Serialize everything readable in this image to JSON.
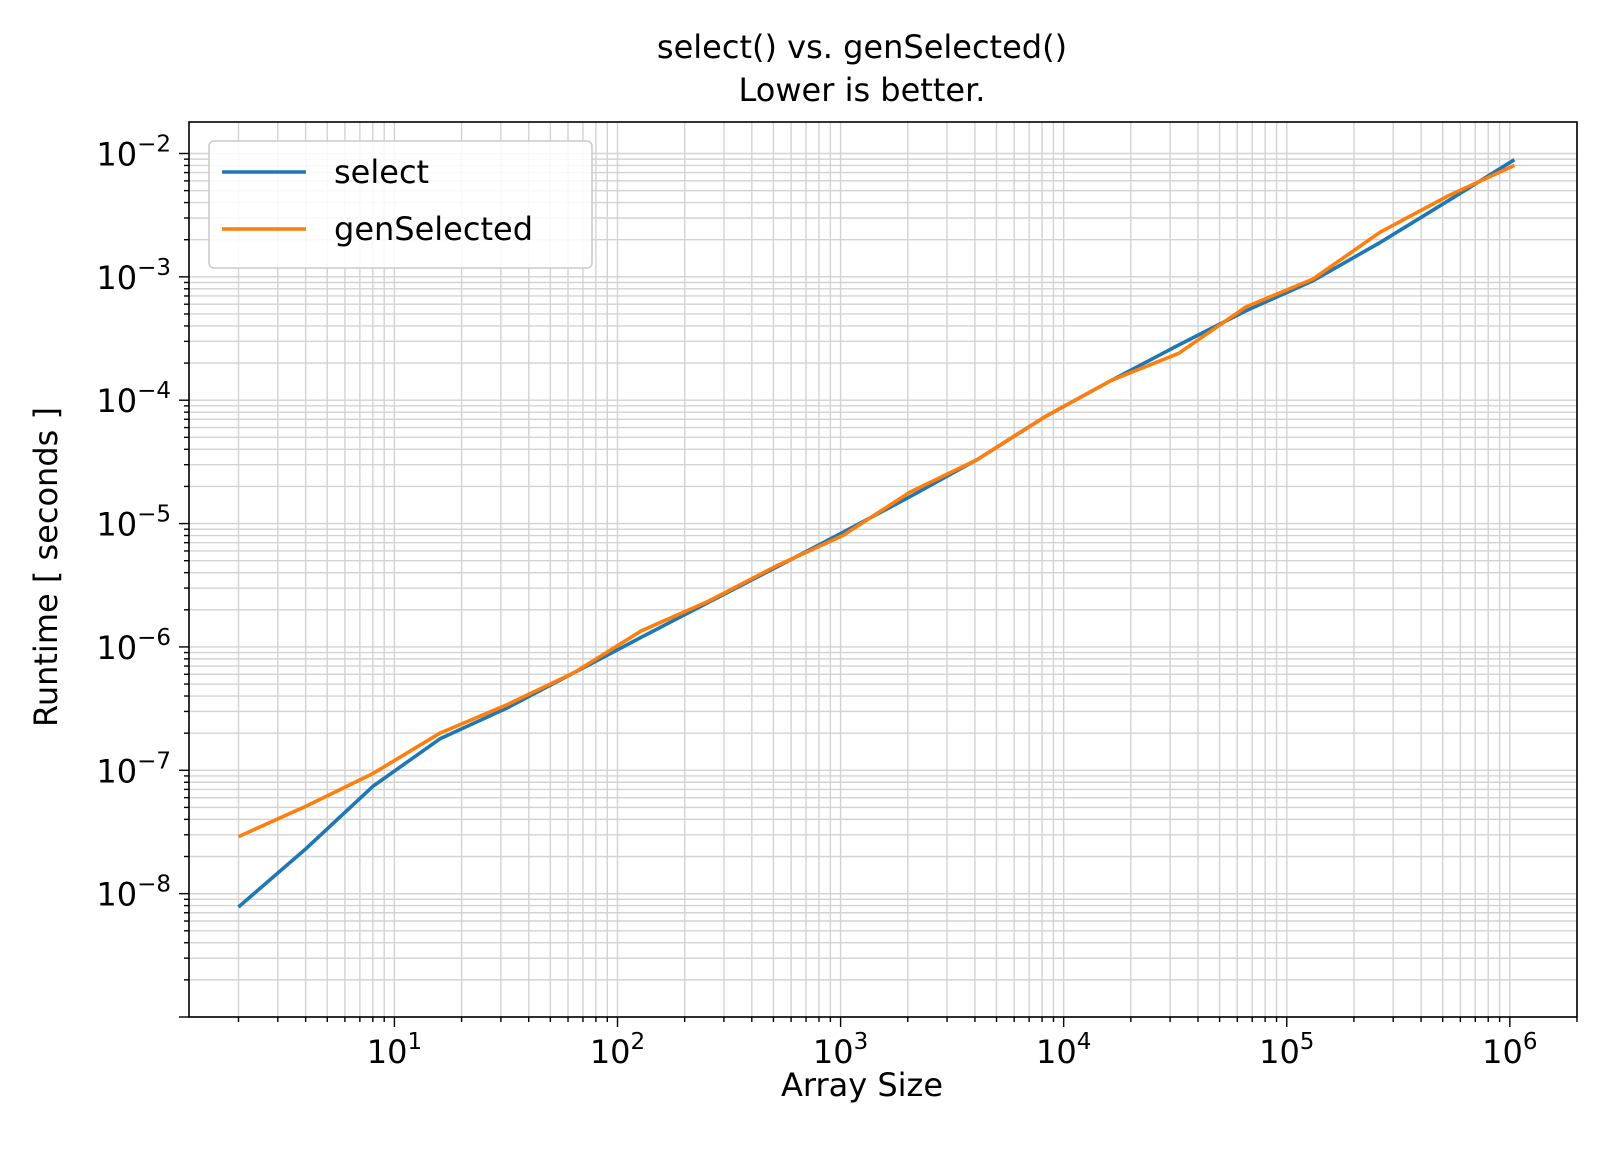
{
  "chart_data": {
    "type": "line",
    "title": "select() vs. genSelected()",
    "subtitle": "Lower is better.",
    "xlabel": "Array Size",
    "ylabel": "Runtime [ seconds ]",
    "xscale": "log",
    "yscale": "log",
    "xlim": [
      1.2,
      2000000
    ],
    "ylim": [
      1e-09,
      0.018
    ],
    "grid": "major and minor",
    "legend_position": "top-left",
    "x_ticks": [
      {
        "base": "10",
        "exp": "1",
        "value": 10
      },
      {
        "base": "10",
        "exp": "2",
        "value": 100
      },
      {
        "base": "10",
        "exp": "3",
        "value": 1000
      },
      {
        "base": "10",
        "exp": "4",
        "value": 10000
      },
      {
        "base": "10",
        "exp": "5",
        "value": 100000
      },
      {
        "base": "10",
        "exp": "6",
        "value": 1000000
      }
    ],
    "y_ticks": [
      {
        "base": "10",
        "exp": "−8",
        "value": 1e-08
      },
      {
        "base": "10",
        "exp": "−7",
        "value": 1e-07
      },
      {
        "base": "10",
        "exp": "−6",
        "value": 1e-06
      },
      {
        "base": "10",
        "exp": "−5",
        "value": 1e-05
      },
      {
        "base": "10",
        "exp": "−4",
        "value": 0.0001
      },
      {
        "base": "10",
        "exp": "−3",
        "value": 0.001
      },
      {
        "base": "10",
        "exp": "−2",
        "value": 0.01
      }
    ],
    "x": [
      2,
      4,
      8,
      16,
      32,
      64,
      128,
      256,
      512,
      1024,
      2048,
      4096,
      8192,
      16384,
      32768,
      65536,
      131072,
      262144,
      524288,
      1048576
    ],
    "series": [
      {
        "name": "select",
        "color": "#1f77b4",
        "values": [
          7.8e-09,
          2.3e-08,
          7.4e-08,
          1.8e-07,
          3.2e-07,
          6.2e-07,
          1.2e-06,
          2.3e-06,
          4.4e-06,
          8.5e-06,
          1.65e-05,
          3.3e-05,
          7.3e-05,
          0.000145,
          0.00028,
          0.00053,
          0.00093,
          0.0019,
          0.0041,
          0.0089
        ]
      },
      {
        "name": "genSelected",
        "color": "#ff7f0e",
        "values": [
          2.9e-08,
          5.1e-08,
          9.4e-08,
          2e-07,
          3.4e-07,
          6.2e-07,
          1.35e-06,
          2.35e-06,
          4.5e-06,
          8e-06,
          1.8e-05,
          3.3e-05,
          7.3e-05,
          0.000145,
          0.00024,
          0.00057,
          0.00096,
          0.0023,
          0.0045,
          0.008
        ]
      }
    ]
  }
}
